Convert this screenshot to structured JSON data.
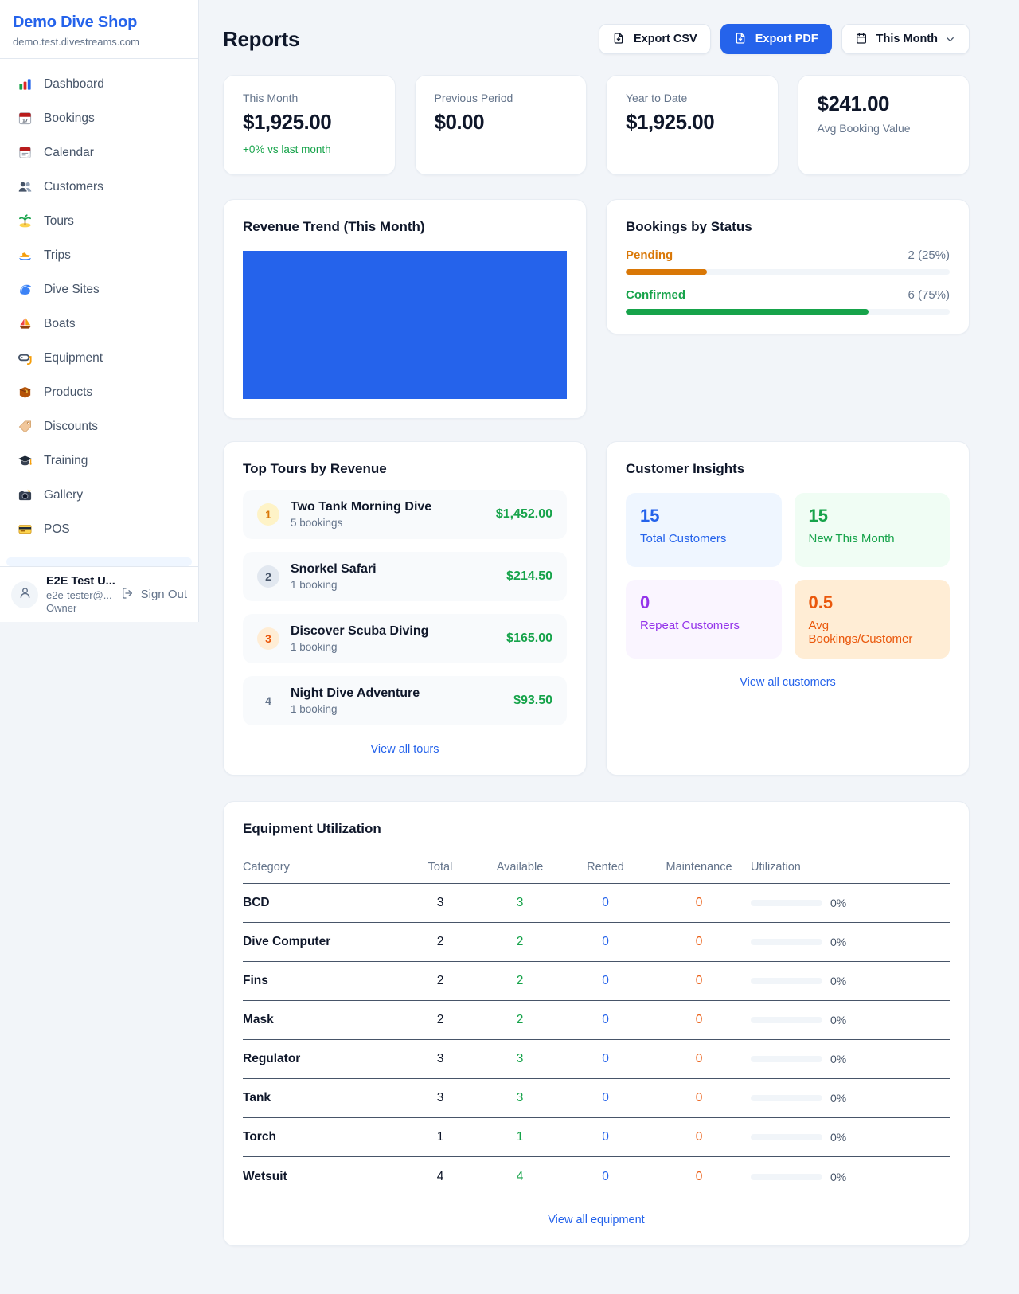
{
  "colors": {
    "accent": "#2563eb",
    "green": "#16a34a",
    "amber": "#d97706",
    "orange": "#ea580c",
    "purple": "#9333ea"
  },
  "sidebar": {
    "brand": {
      "name": "Demo Dive Shop",
      "domain": "demo.test.divestreams.com"
    },
    "nav": [
      {
        "icon": "bar-chart-icon",
        "label": "Dashboard"
      },
      {
        "icon": "calendar-17-icon",
        "label": "Bookings"
      },
      {
        "icon": "calendar-tear-icon",
        "label": "Calendar"
      },
      {
        "icon": "users-icon",
        "label": "Customers"
      },
      {
        "icon": "island-icon",
        "label": "Tours"
      },
      {
        "icon": "speedboat-icon",
        "label": "Trips"
      },
      {
        "icon": "wave-icon",
        "label": "Dive Sites"
      },
      {
        "icon": "sailboat-icon",
        "label": "Boats"
      },
      {
        "icon": "diving-mask-icon",
        "label": "Equipment"
      },
      {
        "icon": "package-icon",
        "label": "Products"
      },
      {
        "icon": "tag-icon",
        "label": "Discounts"
      },
      {
        "icon": "graduation-cap-icon",
        "label": "Training"
      },
      {
        "icon": "camera-icon",
        "label": "Gallery"
      },
      {
        "icon": "credit-card-icon",
        "label": "POS"
      }
    ],
    "user": {
      "name": "E2E Test U...",
      "email": "e2e-tester@...",
      "role": "Owner",
      "avatar_icon": "person-icon",
      "sign_out": {
        "label": "Sign Out",
        "icon": "logout-icon"
      }
    }
  },
  "header": {
    "title": "Reports",
    "export_csv": {
      "label": "Export CSV",
      "icon": "file-down-icon"
    },
    "export_pdf": {
      "label": "Export PDF",
      "icon": "file-down-icon"
    },
    "period": {
      "label": "This Month",
      "icon": "calendar-small-icon",
      "chevron_icon": "chevron-down-icon"
    }
  },
  "stats": [
    {
      "label": "This Month",
      "value": "$1,925.00",
      "delta": "+0% vs last month"
    },
    {
      "label": "Previous Period",
      "value": "$0.00"
    },
    {
      "label": "Year to Date",
      "value": "$1,925.00"
    },
    {
      "label": "Avg Booking Value",
      "value": "$241.00",
      "variant": "value-first"
    }
  ],
  "revenue_trend": {
    "title": "Revenue Trend (This Month)"
  },
  "bookings_by_status": {
    "title": "Bookings by Status",
    "items": [
      {
        "label": "Pending",
        "value": "2 (25%)",
        "pct": 25,
        "color": "#d97706"
      },
      {
        "label": "Confirmed",
        "value": "6 (75%)",
        "pct": 75,
        "color": "#16a34a"
      }
    ]
  },
  "top_tours": {
    "title": "Top Tours by Revenue",
    "items": [
      {
        "rank": "1",
        "rank_theme": "gold",
        "name": "Two Tank Morning Dive",
        "bookings": "5 bookings",
        "amount": "$1,452.00"
      },
      {
        "rank": "2",
        "rank_theme": "silver",
        "name": "Snorkel Safari",
        "bookings": "1 booking",
        "amount": "$214.50"
      },
      {
        "rank": "3",
        "rank_theme": "bronze",
        "name": "Discover Scuba Diving",
        "bookings": "1 booking",
        "amount": "$165.00"
      },
      {
        "rank": "4",
        "rank_theme": "plain",
        "name": "Night Dive Adventure",
        "bookings": "1 booking",
        "amount": "$93.50"
      }
    ],
    "view_all": "View all tours"
  },
  "customer_insights": {
    "title": "Customer Insights",
    "tiles": [
      {
        "value": "15",
        "label": "Total Customers",
        "theme": "blue"
      },
      {
        "value": "15",
        "label": "New This Month",
        "theme": "green"
      },
      {
        "value": "0",
        "label": "Repeat Customers",
        "theme": "purple"
      },
      {
        "value": "0.5",
        "label": "Avg Bookings/Customer",
        "theme": "orange"
      }
    ],
    "view_all": "View all customers"
  },
  "equipment": {
    "title": "Equipment Utilization",
    "columns": {
      "category": "Category",
      "total": "Total",
      "available": "Available",
      "rented": "Rented",
      "maintenance": "Maintenance",
      "utilization": "Utilization"
    },
    "rows": [
      {
        "category": "BCD",
        "total": "3",
        "available": "3",
        "rented": "0",
        "maintenance": "0",
        "utilization": "0%",
        "utilization_pct": 0
      },
      {
        "category": "Dive Computer",
        "total": "2",
        "available": "2",
        "rented": "0",
        "maintenance": "0",
        "utilization": "0%",
        "utilization_pct": 0
      },
      {
        "category": "Fins",
        "total": "2",
        "available": "2",
        "rented": "0",
        "maintenance": "0",
        "utilization": "0%",
        "utilization_pct": 0
      },
      {
        "category": "Mask",
        "total": "2",
        "available": "2",
        "rented": "0",
        "maintenance": "0",
        "utilization": "0%",
        "utilization_pct": 0
      },
      {
        "category": "Regulator",
        "total": "3",
        "available": "3",
        "rented": "0",
        "maintenance": "0",
        "utilization": "0%",
        "utilization_pct": 0
      },
      {
        "category": "Tank",
        "total": "3",
        "available": "3",
        "rented": "0",
        "maintenance": "0",
        "utilization": "0%",
        "utilization_pct": 0
      },
      {
        "category": "Torch",
        "total": "1",
        "available": "1",
        "rented": "0",
        "maintenance": "0",
        "utilization": "0%",
        "utilization_pct": 0
      },
      {
        "category": "Wetsuit",
        "total": "4",
        "available": "4",
        "rented": "0",
        "maintenance": "0",
        "utilization": "0%",
        "utilization_pct": 0
      }
    ],
    "view_all": "View all equipment"
  }
}
